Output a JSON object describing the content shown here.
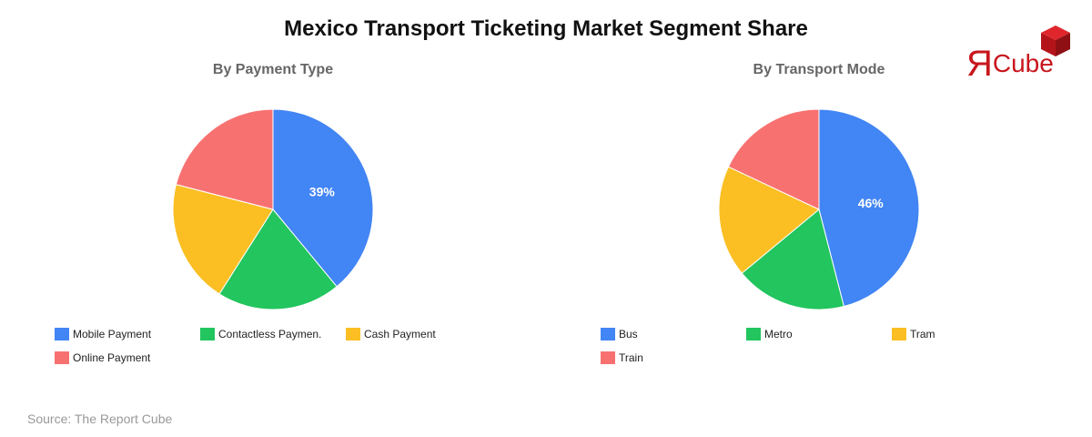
{
  "title": "Mexico Transport Ticketing Market Segment Share",
  "source": "Source: The Report Cube",
  "logo": {
    "r": "Я",
    "text": "Cube",
    "icon": "cube-icon",
    "color": "#c8161d"
  },
  "chart_data": [
    {
      "type": "pie",
      "title": "By Payment Type",
      "labels": [
        "Mobile Payment",
        "Contactless Paymen.",
        "Cash Payment",
        "Online Payment"
      ],
      "values": [
        39,
        20,
        20,
        21
      ],
      "colors": [
        "#4285f4",
        "#22c55e",
        "#fbbf24",
        "#f87171"
      ],
      "data_labels": [
        "39%",
        "",
        "",
        ""
      ],
      "legend": "bottom"
    },
    {
      "type": "pie",
      "title": "By Transport Mode",
      "labels": [
        "Bus",
        "Metro",
        "Tram",
        "Train"
      ],
      "values": [
        46,
        18,
        18,
        18
      ],
      "colors": [
        "#4285f4",
        "#22c55e",
        "#fbbf24",
        "#f87171"
      ],
      "data_labels": [
        "46%",
        "",
        "",
        ""
      ],
      "legend": "bottom"
    }
  ]
}
